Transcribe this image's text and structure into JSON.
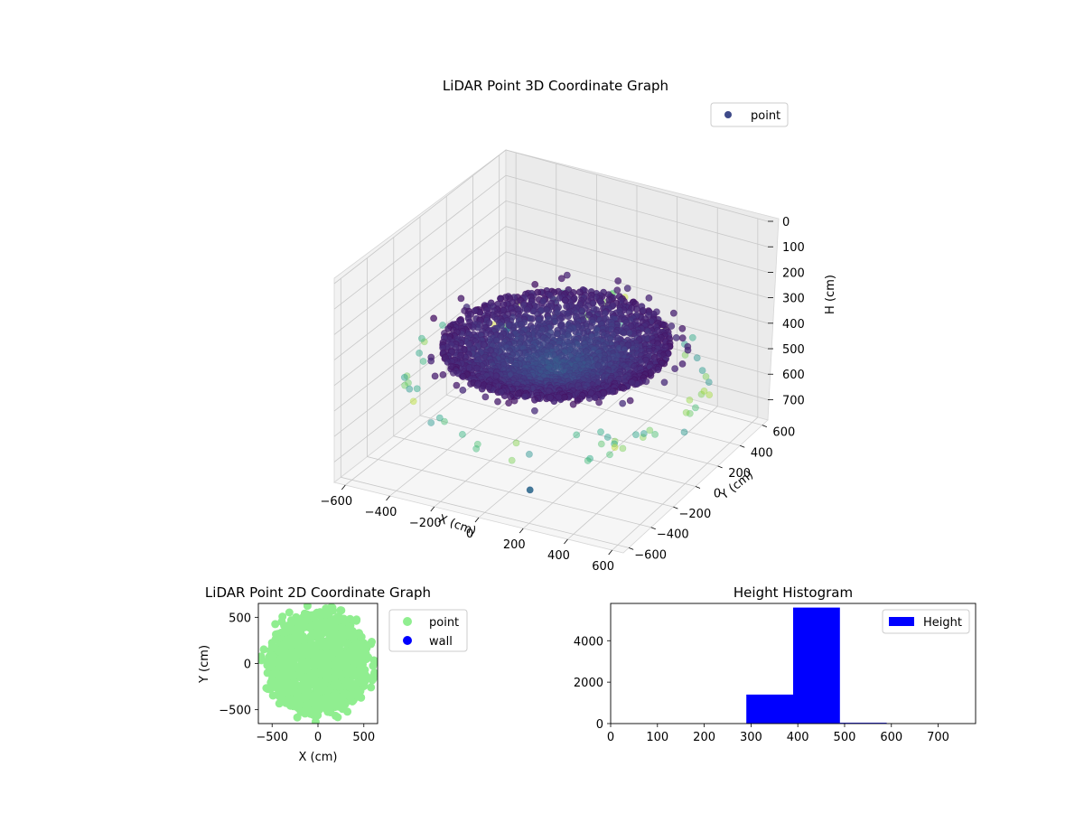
{
  "figure": {
    "background": "#ffffff"
  },
  "chart_data": [
    {
      "type": "scatter",
      "title": "LiDAR Point 3D Coordinate Graph",
      "xlabel": "X (cm)",
      "ylabel": "Y (cm)",
      "zlabel": "H (cm)",
      "xlim": [
        -650,
        650
      ],
      "ylim": [
        -650,
        650
      ],
      "zlim": [
        780,
        0
      ],
      "x_ticks": [
        -600,
        -400,
        -200,
        0,
        200,
        400,
        600
      ],
      "y_ticks": [
        -600,
        -400,
        -200,
        0,
        200,
        400,
        600
      ],
      "z_ticks": [
        0,
        100,
        200,
        300,
        400,
        500,
        600,
        700
      ],
      "legend": {
        "placement": "upper right",
        "entries": [
          "point"
        ],
        "color": "#3e4a89"
      },
      "colormap": "viridis",
      "shape": "dense bowl of points centered near the origin at heights 300–500 cm, with a sparse outer ring of lighter points",
      "outliers": [
        {
          "x": 150,
          "y": -500,
          "h": 700
        },
        {
          "x": -640,
          "y": 640,
          "h": 700
        }
      ]
    },
    {
      "type": "scatter",
      "title": "LiDAR Point 2D Coordinate Graph",
      "xlabel": "X (cm)",
      "ylabel": "Y (cm)",
      "xlim": [
        -650,
        650
      ],
      "ylim": [
        -650,
        650
      ],
      "x_ticks": [
        -500,
        0,
        500
      ],
      "y_ticks": [
        -500,
        0,
        500
      ],
      "series": [
        {
          "name": "point",
          "color": "#90ee90"
        },
        {
          "name": "wall",
          "color": "#0000ff"
        }
      ],
      "legend": {
        "placement": "outside right"
      }
    },
    {
      "type": "bar",
      "title": "Height Histogram",
      "xlabel": "",
      "ylabel": "",
      "xlim": [
        0,
        780
      ],
      "ylim": [
        0,
        5800
      ],
      "x_ticks": [
        0,
        100,
        200,
        300,
        400,
        500,
        600,
        700
      ],
      "y_ticks": [
        0,
        2000,
        4000
      ],
      "bins": [
        {
          "start": 290,
          "end": 390,
          "count": 1400
        },
        {
          "start": 390,
          "end": 490,
          "count": 5600
        },
        {
          "start": 490,
          "end": 590,
          "count": 40
        }
      ],
      "series": [
        {
          "name": "Height",
          "color": "#0000ff"
        }
      ],
      "legend": {
        "placement": "upper right"
      }
    }
  ]
}
